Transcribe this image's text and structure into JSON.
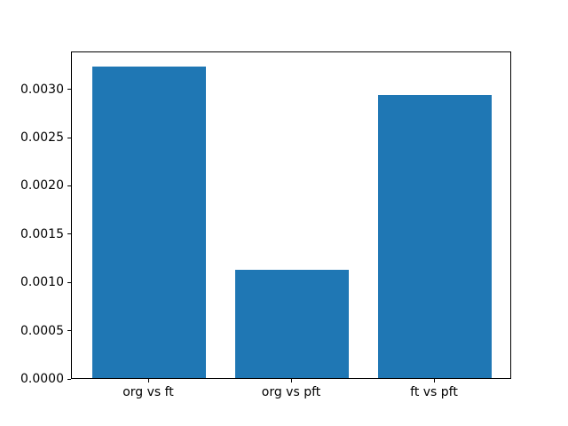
{
  "figure": {
    "background": "#ffffff",
    "spine_color": "#000000",
    "text_color": "#000000"
  },
  "chart_data": {
    "type": "bar",
    "title": "",
    "xlabel": "",
    "ylabel": "",
    "categories": [
      "org vs ft",
      "org vs pft",
      "ft vs pft"
    ],
    "values": [
      0.00323,
      0.00112,
      0.00293
    ],
    "bar_color": "#1f77b4",
    "bar_width_ratio": 0.8,
    "xlim": [
      -0.54,
      2.54
    ],
    "ylim": [
      0,
      0.003392
    ],
    "yticks": [
      0.0,
      0.0005,
      0.001,
      0.0015,
      0.002,
      0.0025,
      0.003
    ],
    "ytick_labels": [
      "0.0000",
      "0.0005",
      "0.0010",
      "0.0015",
      "0.0020",
      "0.0025",
      "0.0030"
    ],
    "grid": false,
    "legend": false
  }
}
